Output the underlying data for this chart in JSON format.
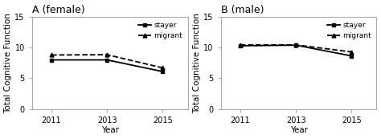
{
  "panels": [
    {
      "title": "A (female)",
      "years": [
        2011,
        2013,
        2015
      ],
      "stayer": [
        8.0,
        8.0,
        6.1
      ],
      "migrant": [
        8.8,
        8.85,
        6.7
      ],
      "ylim": [
        0,
        15
      ],
      "yticks": [
        0,
        5,
        10,
        15
      ]
    },
    {
      "title": "B (male)",
      "years": [
        2011,
        2013,
        2015
      ],
      "stayer": [
        10.3,
        10.4,
        8.65
      ],
      "migrant": [
        10.45,
        10.45,
        9.3
      ],
      "ylim": [
        0,
        15
      ],
      "yticks": [
        0,
        5,
        10,
        15
      ]
    }
  ],
  "xlabel": "Year",
  "ylabel": "Total Cognitive Function",
  "stayer_color": "#000000",
  "migrant_color": "#000000",
  "stayer_label": "stayer",
  "migrant_label": "migrant",
  "background_color": "#ffffff",
  "spine_color": "#aaaaaa",
  "legend_fontsize": 6.5,
  "axis_label_fontsize": 7.5,
  "title_fontsize": 9,
  "tick_fontsize": 7,
  "linewidth": 1.3,
  "markersize": 3.5
}
